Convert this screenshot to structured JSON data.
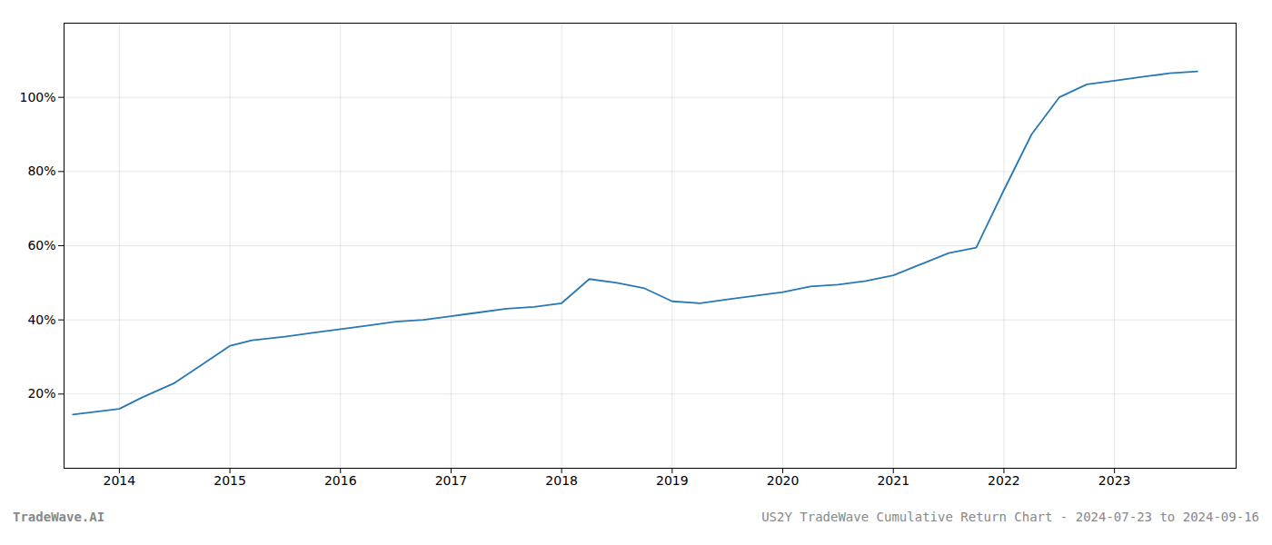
{
  "chart_data": {
    "type": "line",
    "title": "US2Y TradeWave Cumulative Return Chart - 2024-07-23 to 2024-09-16",
    "annotations": [
      "TradeWave.AI"
    ],
    "x": [
      2013.58,
      2014.0,
      2014.2,
      2014.5,
      2014.75,
      2015.0,
      2015.2,
      2015.5,
      2015.75,
      2016.0,
      2016.25,
      2016.5,
      2016.75,
      2017.0,
      2017.25,
      2017.5,
      2017.75,
      2018.0,
      2018.25,
      2018.5,
      2018.75,
      2019.0,
      2019.25,
      2019.5,
      2019.75,
      2020.0,
      2020.25,
      2020.5,
      2020.75,
      2021.0,
      2021.25,
      2021.5,
      2021.75,
      2022.0,
      2022.25,
      2022.5,
      2022.75,
      2023.0,
      2023.25,
      2023.5,
      2023.75
    ],
    "values": [
      14.5,
      16.0,
      19.0,
      23.0,
      28.0,
      33.0,
      34.5,
      35.5,
      36.5,
      37.5,
      38.5,
      39.5,
      40.0,
      41.0,
      42.0,
      43.0,
      43.5,
      44.5,
      51.0,
      50.0,
      48.5,
      45.0,
      44.5,
      45.5,
      46.5,
      47.5,
      49.0,
      49.5,
      50.5,
      52.0,
      55.0,
      58.0,
      59.5,
      75.0,
      90.0,
      100.0,
      103.5,
      104.5,
      105.5,
      106.5,
      107.0
    ],
    "color": "#2878b5",
    "xlim": [
      2013.5,
      2024.1
    ],
    "ylim": [
      0,
      120
    ],
    "xticks": [
      2014,
      2015,
      2016,
      2017,
      2018,
      2019,
      2020,
      2021,
      2022,
      2023
    ],
    "yticks": [
      {
        "value": 20,
        "label": "20%"
      },
      {
        "value": 40,
        "label": "40%"
      },
      {
        "value": 60,
        "label": "60%"
      },
      {
        "value": 80,
        "label": "80%"
      },
      {
        "value": 100,
        "label": "100%"
      }
    ],
    "grid": true
  }
}
